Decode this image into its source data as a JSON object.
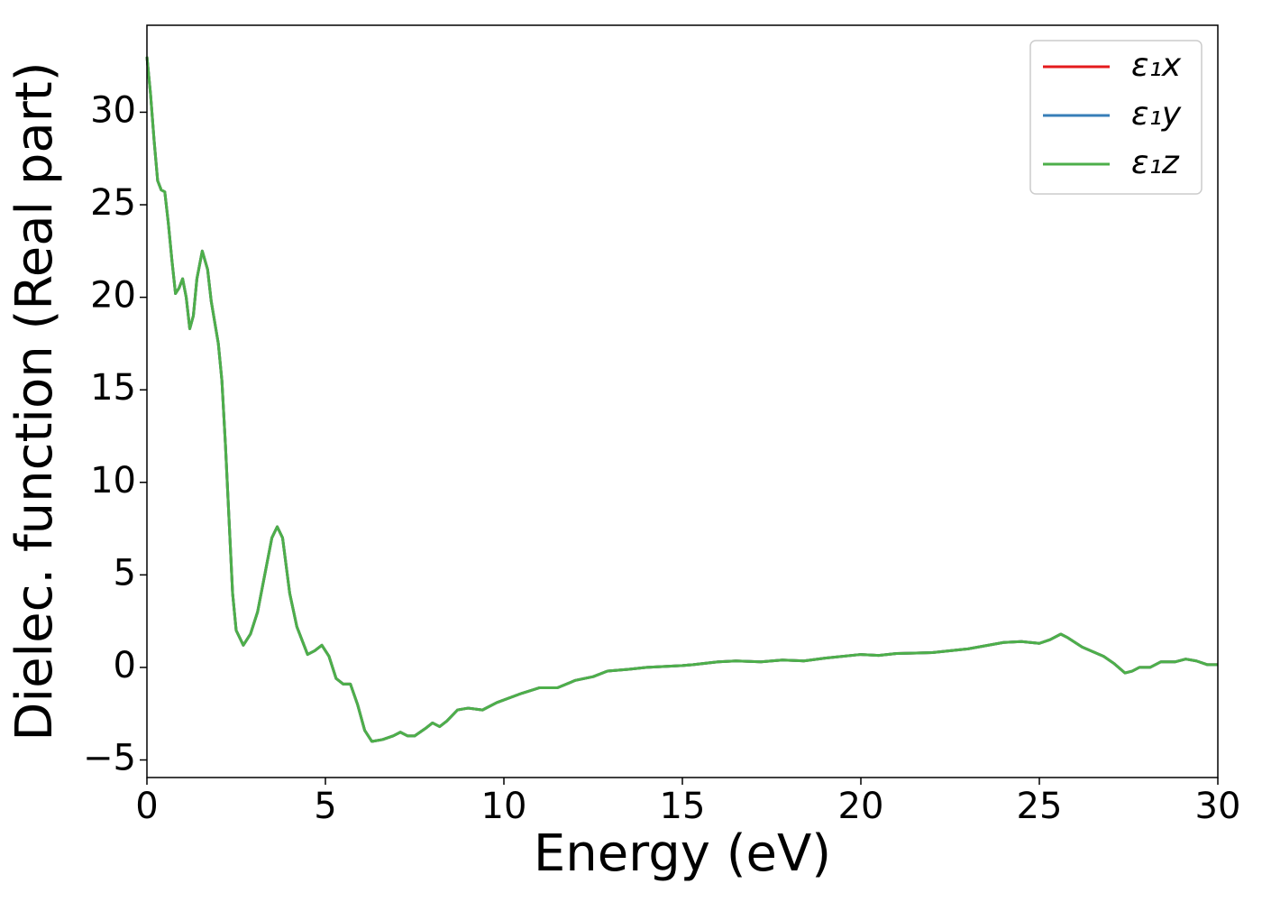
{
  "chart_data": {
    "type": "line",
    "xlabel": "Energy (eV)",
    "ylabel": "Dielec. function (Real part)",
    "x": [
      0,
      0.1,
      0.2,
      0.3,
      0.4,
      0.5,
      0.6,
      0.7,
      0.8,
      0.9,
      1.0,
      1.1,
      1.2,
      1.3,
      1.4,
      1.55,
      1.7,
      1.8,
      2.0,
      2.1,
      2.2,
      2.3,
      2.4,
      2.5,
      2.7,
      2.9,
      3.1,
      3.3,
      3.5,
      3.65,
      3.8,
      4.0,
      4.2,
      4.5,
      4.7,
      4.9,
      5.1,
      5.3,
      5.5,
      5.7,
      5.9,
      6.1,
      6.3,
      6.6,
      6.9,
      7.1,
      7.3,
      7.5,
      7.8,
      8.0,
      8.2,
      8.4,
      8.7,
      9.0,
      9.4,
      9.8,
      10.5,
      11.0,
      11.5,
      12.0,
      12.5,
      12.9,
      13.5,
      14.0,
      15.0,
      15.3,
      16.0,
      16.5,
      17.2,
      17.8,
      18.4,
      19.0,
      20.0,
      20.5,
      21.0,
      22.0,
      23.0,
      24.0,
      24.5,
      25.0,
      25.3,
      25.6,
      25.8,
      26.2,
      26.8,
      27.1,
      27.4,
      27.6,
      27.8,
      28.1,
      28.4,
      28.8,
      29.1,
      29.4,
      29.7,
      30.0
    ],
    "series": [
      {
        "name": "ε₁x",
        "color": "#e41a1c",
        "values": [
          33,
          31,
          28.5,
          26.3,
          25.8,
          25.7,
          24,
          22,
          20.2,
          20.5,
          21,
          20,
          18.3,
          19,
          21,
          22.5,
          21.5,
          19.8,
          17.5,
          15.5,
          12,
          8,
          4,
          2,
          1.2,
          1.8,
          3,
          5,
          7,
          7.6,
          7,
          4,
          2.2,
          0.7,
          0.9,
          1.2,
          0.6,
          -0.6,
          -0.9,
          -0.9,
          -2,
          -3.4,
          -4,
          -3.9,
          -3.7,
          -3.5,
          -3.7,
          -3.7,
          -3.3,
          -3,
          -3.2,
          -2.9,
          -2.3,
          -2.2,
          -2.3,
          -1.9,
          -1.4,
          -1.1,
          -1.1,
          -0.7,
          -0.5,
          -0.2,
          -0.1,
          0,
          0.1,
          0.15,
          0.3,
          0.35,
          0.3,
          0.4,
          0.35,
          0.5,
          0.7,
          0.65,
          0.75,
          0.8,
          1.0,
          1.35,
          1.4,
          1.3,
          1.5,
          1.8,
          1.6,
          1.1,
          0.6,
          0.2,
          -0.3,
          -0.2,
          0,
          0,
          0.3,
          0.3,
          0.45,
          0.35,
          0.15,
          0.15
        ]
      },
      {
        "name": "ε₁y",
        "color": "#377eb8",
        "values": [
          33,
          31,
          28.5,
          26.3,
          25.8,
          25.7,
          24,
          22,
          20.2,
          20.5,
          21,
          20,
          18.3,
          19,
          21,
          22.5,
          21.5,
          19.8,
          17.5,
          15.5,
          12,
          8,
          4,
          2,
          1.2,
          1.8,
          3,
          5,
          7,
          7.6,
          7,
          4,
          2.2,
          0.7,
          0.9,
          1.2,
          0.6,
          -0.6,
          -0.9,
          -0.9,
          -2,
          -3.4,
          -4,
          -3.9,
          -3.7,
          -3.5,
          -3.7,
          -3.7,
          -3.3,
          -3,
          -3.2,
          -2.9,
          -2.3,
          -2.2,
          -2.3,
          -1.9,
          -1.4,
          -1.1,
          -1.1,
          -0.7,
          -0.5,
          -0.2,
          -0.1,
          0,
          0.1,
          0.15,
          0.3,
          0.35,
          0.3,
          0.4,
          0.35,
          0.5,
          0.7,
          0.65,
          0.75,
          0.8,
          1.0,
          1.35,
          1.4,
          1.3,
          1.5,
          1.8,
          1.6,
          1.1,
          0.6,
          0.2,
          -0.3,
          -0.2,
          0,
          0,
          0.3,
          0.3,
          0.45,
          0.35,
          0.15,
          0.15
        ]
      },
      {
        "name": "ε₁z",
        "color": "#4daf4a",
        "values": [
          33,
          31,
          28.5,
          26.3,
          25.8,
          25.7,
          24,
          22,
          20.2,
          20.5,
          21,
          20,
          18.3,
          19,
          21,
          22.5,
          21.5,
          19.8,
          17.5,
          15.5,
          12,
          8,
          4,
          2,
          1.2,
          1.8,
          3,
          5,
          7,
          7.6,
          7,
          4,
          2.2,
          0.7,
          0.9,
          1.2,
          0.6,
          -0.6,
          -0.9,
          -0.9,
          -2,
          -3.4,
          -4,
          -3.9,
          -3.7,
          -3.5,
          -3.7,
          -3.7,
          -3.3,
          -3,
          -3.2,
          -2.9,
          -2.3,
          -2.2,
          -2.3,
          -1.9,
          -1.4,
          -1.1,
          -1.1,
          -0.7,
          -0.5,
          -0.2,
          -0.1,
          0,
          0.1,
          0.15,
          0.3,
          0.35,
          0.3,
          0.4,
          0.35,
          0.5,
          0.7,
          0.65,
          0.75,
          0.8,
          1.0,
          1.35,
          1.4,
          1.3,
          1.5,
          1.8,
          1.6,
          1.1,
          0.6,
          0.2,
          -0.3,
          -0.2,
          0,
          0,
          0.3,
          0.3,
          0.45,
          0.35,
          0.15,
          0.15
        ]
      }
    ],
    "xlim": [
      0,
      30
    ],
    "xticks": [
      0,
      5,
      10,
      15,
      20,
      25,
      30
    ],
    "ylim": [
      -5.95,
      34.7
    ],
    "yticks": [
      {
        "value": -5,
        "label": "−5"
      },
      0,
      5,
      10,
      15,
      20,
      25,
      30
    ],
    "grid": false,
    "legend": "upper right"
  }
}
